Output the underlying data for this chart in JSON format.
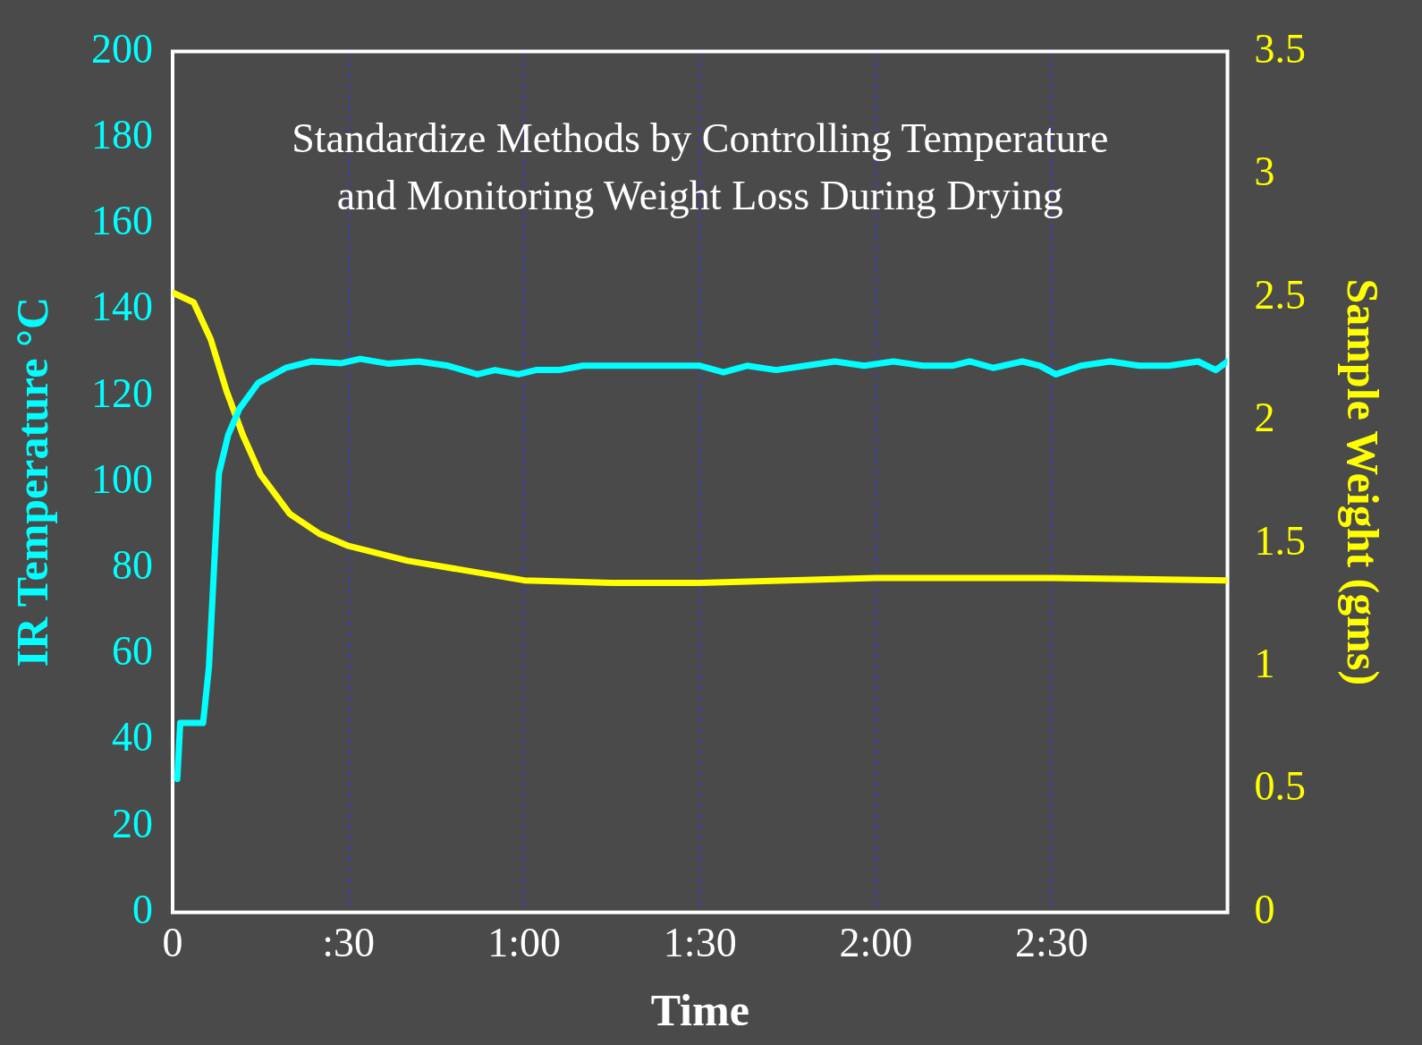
{
  "chart_data": {
    "type": "line",
    "title": "Standardize Methods by Controlling Temperature and Monitoring Weight Loss During Drying",
    "xlabel": "Time",
    "ylabel": "IR Temperature °C",
    "y2label": "Sample Weight (gms)",
    "xlim": [
      0,
      180
    ],
    "xticks": [
      0,
      {
        "value": 30,
        "label": ":30"
      },
      {
        "value": 60,
        "label": "1:00"
      },
      {
        "value": 90,
        "label": "1:30"
      },
      {
        "value": 120,
        "label": "2:00"
      },
      {
        "value": 150,
        "label": "2:30"
      }
    ],
    "ylim": [
      0,
      200
    ],
    "yticks": [
      0,
      20,
      40,
      60,
      80,
      100,
      120,
      140,
      160,
      180,
      200
    ],
    "y2lim": [
      0,
      3.5
    ],
    "y2ticks": [
      0,
      0.5,
      1,
      1.5,
      2,
      2.5,
      3,
      3.5
    ],
    "grid": "x",
    "legend": false,
    "marker": "none",
    "line_style": "solid",
    "series": [
      {
        "color": "#00ffff",
        "x": [
          0.8,
          1.3,
          5.2,
          6.2,
          7.9,
          9.5,
          11.4,
          14.6,
          19.3,
          23.7,
          28.8,
          32,
          36.7,
          42,
          47,
          52,
          55,
          59,
          62,
          66,
          70,
          75,
          80,
          85,
          90,
          94,
          98,
          103,
          108,
          113,
          118,
          123,
          128,
          133,
          136,
          140,
          145,
          148,
          150.7,
          155,
          160,
          165,
          170,
          175,
          178,
          180
        ],
        "values": [
          31,
          44,
          44,
          57,
          102,
          111,
          117,
          123,
          126.5,
          128,
          127.6,
          128.6,
          127.5,
          128,
          127,
          125,
          126,
          125,
          126,
          126,
          127,
          127,
          127,
          127,
          127,
          125.5,
          127,
          126,
          127,
          128,
          127,
          128,
          127,
          127,
          128,
          126.5,
          128,
          127,
          125,
          127,
          128,
          127,
          127,
          128,
          126,
          128
        ]
      },
      {
        "color": "#ffff00",
        "axis": "y2",
        "x": [
          0,
          3.6,
          6.5,
          9.2,
          12,
          15,
          20,
          25,
          30,
          40,
          50,
          60,
          75,
          90,
          120,
          150,
          180
        ],
        "values": [
          2.52,
          2.48,
          2.33,
          2.12,
          1.94,
          1.78,
          1.62,
          1.54,
          1.49,
          1.43,
          1.39,
          1.35,
          1.34,
          1.34,
          1.36,
          1.36,
          1.35
        ]
      }
    ]
  }
}
